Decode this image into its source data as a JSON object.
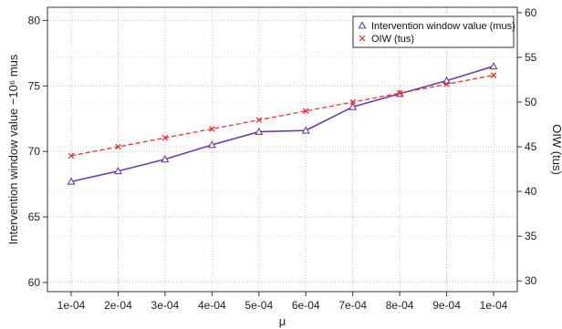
{
  "chart_data": {
    "type": "line",
    "xlabel": "μ",
    "ylabel_left": "Intervention window value −10⁶ mus",
    "ylabel_right": "OIW (tus)",
    "categories": [
      "1e-04",
      "2e-04",
      "3e-04",
      "4e-04",
      "5e-04",
      "6e-04",
      "7e-04",
      "8e-04",
      "9e-04",
      "1e-04"
    ],
    "ylim_left": [
      59.3,
      81
    ],
    "ylim_right": [
      28.8,
      60.6
    ],
    "yticks_left": [
      60,
      65,
      70,
      75,
      80
    ],
    "yticks_right": [
      30,
      35,
      40,
      45,
      50,
      55,
      60
    ],
    "grid": true,
    "legend_position": "top-right",
    "series": [
      {
        "name": "Intervention window value (mus)",
        "axis": "left",
        "color": "#6a3fa0",
        "marker": "triangle",
        "line_style": "solid",
        "values": [
          67.7,
          68.5,
          69.4,
          70.5,
          71.5,
          71.6,
          73.4,
          74.4,
          75.4,
          76.5
        ]
      },
      {
        "name": "OIW (tus)",
        "axis": "right",
        "color": "#e8352a",
        "marker": "cross",
        "line_style": "dashed",
        "values": [
          44.0,
          45.0,
          46.0,
          47.0,
          48.0,
          49.0,
          50.0,
          51.0,
          52.0,
          53.0
        ]
      }
    ]
  }
}
